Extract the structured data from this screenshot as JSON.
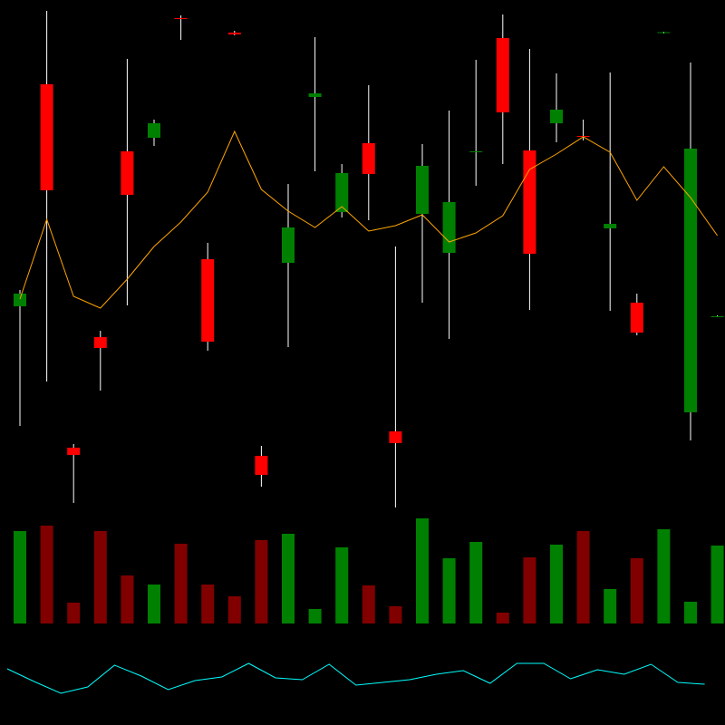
{
  "chart_data": {
    "type": "candlestick",
    "open": [
      462,
      707,
      306,
      428,
      633,
      648,
      780,
      514,
      764,
      297,
      510,
      693,
      566,
      642,
      324,
      564,
      521,
      632,
      758,
      634,
      664,
      650,
      548,
      466,
      764,
      345,
      451
    ],
    "close": [
      476,
      590,
      298,
      416,
      585,
      664,
      779,
      423,
      762,
      276,
      549,
      697,
      609,
      608,
      311,
      617,
      577,
      633,
      676,
      520,
      679,
      649,
      553,
      433,
      764.5,
      636,
      451
    ],
    "high": [
      480,
      788,
      310,
      435,
      735,
      668,
      783,
      532,
      766,
      308,
      597,
      759,
      619,
      706,
      528,
      641,
      678,
      734,
      784,
      746,
      719,
      668,
      720,
      476,
      765,
      731,
      452
    ],
    "low": [
      330,
      379,
      245,
      369,
      463,
      639,
      756,
      413,
      761,
      263,
      417,
      611,
      560,
      557,
      240,
      466,
      426,
      595,
      619,
      458,
      643,
      645,
      457,
      430,
      763,
      314,
      450
    ],
    "ylim": [
      240,
      800
    ],
    "up_color": "#008000",
    "down_color": "#ff0000",
    "wick_color": "#ffffff",
    "ma": [
      470,
      558,
      473,
      460,
      492,
      528,
      555,
      588,
      655,
      591,
      567,
      549,
      572,
      545,
      551,
      563,
      533,
      543,
      562,
      613,
      630,
      649,
      632,
      579,
      616,
      582,
      540
    ],
    "ma_color": "#ffa500",
    "volume": [
      102,
      108,
      23,
      102,
      53,
      43,
      88,
      43,
      30,
      92,
      99,
      16,
      84,
      42,
      19,
      116,
      72,
      90,
      12,
      73,
      87,
      102,
      38,
      72,
      104,
      24,
      86
    ],
    "volume_ylim": [
      0,
      130
    ],
    "volume_up_color": "#008000",
    "volume_down_color": "#800000",
    "indicator": [
      62,
      48,
      35,
      42,
      66,
      54,
      39,
      49,
      53,
      68,
      52,
      50,
      67,
      44,
      47,
      50,
      56,
      60,
      46,
      68,
      68,
      51,
      61,
      56,
      67,
      47,
      45
    ],
    "indicator_ylim": [
      0,
      100
    ],
    "indicator_color": "#00ffff"
  }
}
